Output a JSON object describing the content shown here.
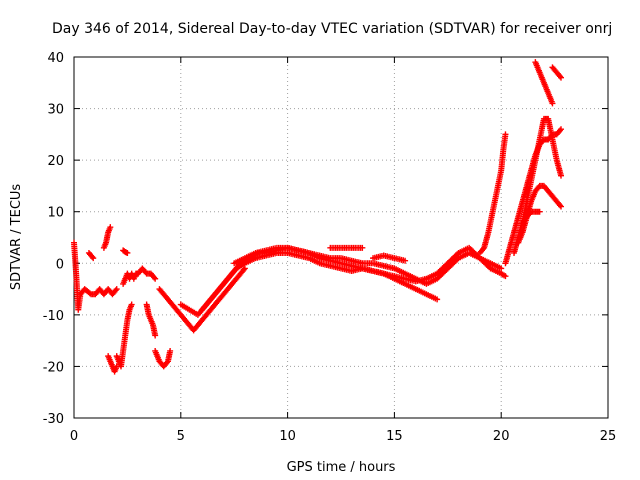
{
  "chart_data": {
    "type": "scatter",
    "title": "Day 346 of 2014, Sidereal Day-to-day VTEC variation (SDTVAR) for receiver onrj",
    "xlabel": "GPS time / hours",
    "ylabel": "SDTVAR / TECUs",
    "xlim": [
      0,
      25
    ],
    "ylim": [
      -30,
      40
    ],
    "xticks": [
      0,
      5,
      10,
      15,
      20,
      25
    ],
    "yticks": [
      -30,
      -20,
      -10,
      0,
      10,
      20,
      30,
      40
    ],
    "grid": true,
    "marker": "+",
    "color": "#ff0000",
    "series": [
      {
        "name": "trace-a",
        "x": [
          0.0,
          0.1,
          0.2,
          0.3,
          0.5,
          0.8,
          1.0,
          1.2,
          1.4,
          1.6,
          1.8,
          2.0
        ],
        "y": [
          4,
          -2,
          -9,
          -6,
          -5,
          -6,
          -6,
          -5,
          -6,
          -5,
          -6,
          -5
        ]
      },
      {
        "name": "trace-b",
        "x": [
          0.7,
          0.8,
          0.9
        ],
        "y": [
          2,
          1.5,
          1
        ]
      },
      {
        "name": "trace-c",
        "x": [
          1.4,
          1.5,
          1.6,
          1.7
        ],
        "y": [
          3,
          4,
          6,
          7
        ]
      },
      {
        "name": "trace-d",
        "x": [
          1.6,
          1.7,
          1.8,
          1.9,
          2.0
        ],
        "y": [
          -18,
          -19,
          -20,
          -21,
          -20
        ]
      },
      {
        "name": "trace-e",
        "x": [
          2.0,
          2.1,
          2.2,
          2.3,
          2.4,
          2.5,
          2.6,
          2.7
        ],
        "y": [
          -18,
          -19,
          -20,
          -17,
          -14,
          -11,
          -9,
          -8
        ]
      },
      {
        "name": "trace-f",
        "x": [
          2.3,
          2.4,
          2.5
        ],
        "y": [
          2.5,
          2.2,
          2
        ]
      },
      {
        "name": "trace-g",
        "x": [
          2.3,
          2.4,
          2.5,
          2.6,
          2.7,
          2.8,
          2.9,
          3.0
        ],
        "y": [
          -4,
          -3,
          -2,
          -3,
          -2,
          -3,
          -2,
          -2
        ]
      },
      {
        "name": "trace-h",
        "x": [
          3.0,
          3.2,
          3.4,
          3.6,
          3.8
        ],
        "y": [
          -2,
          -1,
          -2,
          -2,
          -3
        ]
      },
      {
        "name": "trace-i",
        "x": [
          3.4,
          3.5,
          3.6,
          3.7,
          3.8
        ],
        "y": [
          -8,
          -10,
          -11,
          -12,
          -14
        ]
      },
      {
        "name": "trace-j",
        "x": [
          3.8,
          4.0,
          4.2,
          4.4,
          4.5
        ],
        "y": [
          -17,
          -19,
          -20,
          -19,
          -17
        ]
      },
      {
        "name": "trace-k",
        "x": [
          4.0,
          4.2,
          4.4,
          4.6,
          4.8,
          5.0,
          5.2,
          5.4,
          5.6,
          5.8,
          6.0,
          6.2,
          6.4,
          6.6,
          6.8,
          7.0,
          7.2,
          7.4,
          7.6,
          7.8,
          8.0
        ],
        "y": [
          -5,
          -6,
          -7,
          -8,
          -9,
          -10,
          -11,
          -12,
          -13,
          -12,
          -11,
          -10,
          -9,
          -8,
          -7,
          -6,
          -5,
          -4,
          -3,
          -2,
          -1
        ]
      },
      {
        "name": "trace-l",
        "x": [
          5.0,
          5.4,
          5.8,
          6.2,
          6.6,
          7.0,
          7.4,
          7.8,
          8.2,
          8.6,
          9.0,
          9.5,
          10.0,
          10.5,
          11.0,
          11.5,
          12.0,
          12.5,
          13.0,
          13.5,
          14.0,
          14.5,
          15.0,
          15.5,
          16.0,
          16.5,
          17.0
        ],
        "y": [
          -8,
          -9,
          -10,
          -8,
          -6,
          -4,
          -2,
          0,
          1,
          2,
          2,
          2.5,
          3,
          2.5,
          2,
          1,
          0.5,
          0,
          -0.5,
          -1,
          -1.5,
          -2,
          -3,
          -4,
          -5,
          -6,
          -7
        ]
      },
      {
        "name": "trace-m",
        "x": [
          6.0,
          6.4,
          6.8,
          7.2,
          7.6,
          8.0,
          8.5,
          9.0,
          9.5,
          10.0,
          10.5,
          11.0,
          11.5,
          12.0,
          12.5,
          13.0,
          13.5,
          14.0,
          14.5,
          15.0,
          15.5,
          16.0,
          16.5,
          17.0,
          17.5,
          18.0,
          18.5,
          19.0,
          19.5,
          20.0,
          20.2
        ],
        "y": [
          -9,
          -7,
          -5,
          -3,
          -1,
          0,
          1,
          1.5,
          2,
          2,
          1.5,
          1,
          0,
          -0.5,
          -1,
          -1.5,
          -1,
          -1.5,
          -2,
          -2.5,
          -3,
          -3.5,
          -3,
          -2,
          0,
          2,
          3,
          1,
          -1,
          -2,
          -2.5
        ]
      },
      {
        "name": "trace-n",
        "x": [
          7.5,
          8.0,
          8.5,
          9.0,
          9.5,
          10.0,
          10.5,
          11.0,
          11.5,
          12.0,
          12.5,
          13.0,
          13.5,
          14.0,
          14.5,
          15.0,
          15.5,
          16.0,
          16.5,
          17.0,
          17.5,
          18.0,
          18.5,
          19.0,
          19.5,
          20.0
        ],
        "y": [
          0,
          1,
          2,
          2.5,
          3,
          3,
          2.5,
          2,
          1.5,
          1,
          1,
          0.5,
          0,
          0,
          -0.5,
          -1,
          -2,
          -3,
          -4,
          -3,
          -1,
          1,
          2,
          1,
          0,
          -1
        ]
      },
      {
        "name": "trace-o",
        "x": [
          12.0,
          12.5,
          13.0,
          13.5
        ],
        "y": [
          3,
          3,
          3,
          3
        ]
      },
      {
        "name": "trace-p",
        "x": [
          14.0,
          14.5,
          15.0,
          15.5
        ],
        "y": [
          1,
          1.5,
          1,
          0.5
        ]
      },
      {
        "name": "trace-q",
        "x": [
          19.0,
          19.2,
          19.4,
          19.6,
          19.8,
          20.0,
          20.1,
          20.2
        ],
        "y": [
          2,
          3,
          6,
          10,
          14,
          18,
          22,
          25
        ]
      },
      {
        "name": "trace-r",
        "x": [
          20.2,
          20.4,
          20.6,
          20.8,
          21.0,
          21.2,
          21.4,
          21.6,
          21.8,
          22.0,
          22.2,
          22.4,
          22.6,
          22.8
        ],
        "y": [
          0,
          3,
          6,
          9,
          12,
          15,
          18,
          21,
          23,
          24,
          24,
          25,
          25,
          26
        ]
      },
      {
        "name": "trace-s",
        "x": [
          20.6,
          20.8,
          21.0,
          21.2,
          21.4,
          21.6,
          21.8,
          22.0,
          22.2,
          22.4,
          22.6,
          22.8
        ],
        "y": [
          2,
          5,
          8,
          12,
          16,
          20,
          24,
          28,
          28,
          24,
          20,
          17
        ]
      },
      {
        "name": "trace-t",
        "x": [
          20.8,
          21.0,
          21.2,
          21.4,
          21.6,
          21.8,
          22.0,
          22.2,
          22.4,
          22.6,
          22.8
        ],
        "y": [
          4,
          6,
          9,
          12,
          14,
          15,
          15,
          14,
          13,
          12,
          11
        ]
      },
      {
        "name": "trace-u",
        "x": [
          21.0,
          21.2,
          21.4,
          21.6,
          21.8
        ],
        "y": [
          8,
          9,
          10,
          10,
          10
        ]
      },
      {
        "name": "trace-v",
        "x": [
          21.6,
          21.8,
          22.0,
          22.2,
          22.4
        ],
        "y": [
          39,
          37,
          35,
          33,
          31
        ]
      },
      {
        "name": "trace-w",
        "x": [
          22.4,
          22.6,
          22.8
        ],
        "y": [
          38,
          37,
          36
        ]
      }
    ]
  }
}
